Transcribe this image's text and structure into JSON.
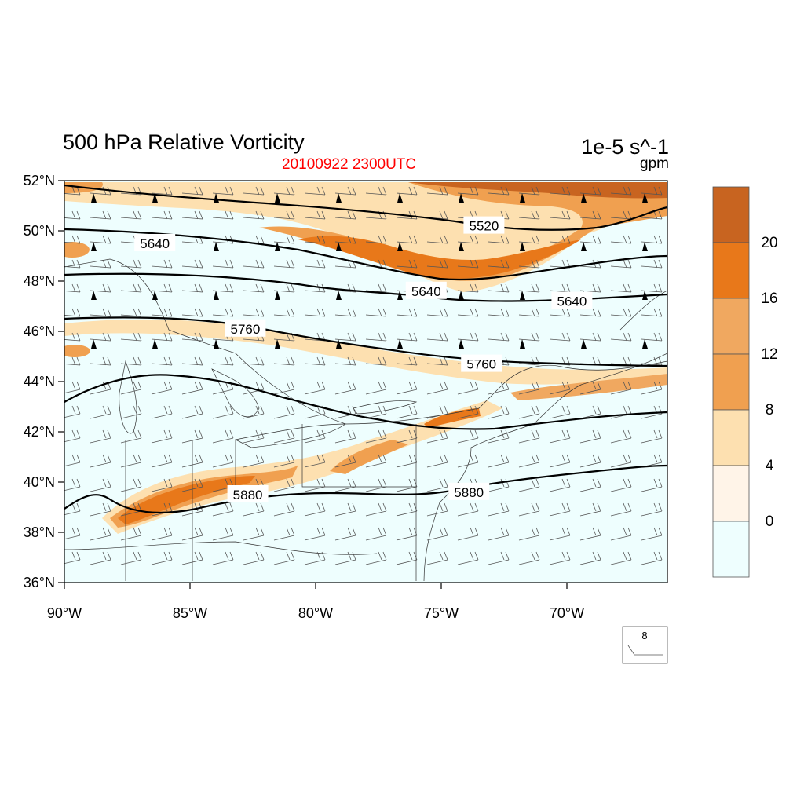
{
  "title": "500 hPa Relative Vorticity",
  "subtitle": "20100922 2300UTC",
  "units": "1e-5 s^-1",
  "contour_units": "gpm",
  "map": {
    "lon_range": [
      -90,
      -66
    ],
    "lat_range": [
      36,
      52
    ],
    "lat_ticks": [
      "52°N",
      "50°N",
      "48°N",
      "46°N",
      "44°N",
      "42°N",
      "40°N",
      "38°N",
      "36°N"
    ],
    "lon_ticks": [
      "90°W",
      "85°W",
      "80°W",
      "75°W",
      "70°W"
    ]
  },
  "contour_labels": [
    {
      "text": "5520",
      "lon": -73.3,
      "lat": 50.2
    },
    {
      "text": "5640",
      "lon": -86.4,
      "lat": 49.5
    },
    {
      "text": "5640",
      "lon": -75.6,
      "lat": 47.6
    },
    {
      "text": "5640",
      "lon": -69.8,
      "lat": 47.2
    },
    {
      "text": "5760",
      "lon": -82.8,
      "lat": 46.1
    },
    {
      "text": "5760",
      "lon": -73.4,
      "lat": 44.7
    },
    {
      "text": "5880",
      "lon": -82.7,
      "lat": 39.5
    },
    {
      "text": "5880",
      "lon": -73.9,
      "lat": 39.6
    }
  ],
  "colorbar": {
    "labels": [
      "20",
      "16",
      "12",
      "8",
      "4",
      "0"
    ],
    "colors": [
      "#c86420",
      "#e8781a",
      "#f0a860",
      "#f0a050",
      "#fde0b0",
      "#fff4e8",
      "#eefefe"
    ]
  },
  "reference_vector": {
    "label": "8"
  },
  "colors": {
    "background_fill": "#eefefe",
    "title_red": "#ff0000"
  }
}
